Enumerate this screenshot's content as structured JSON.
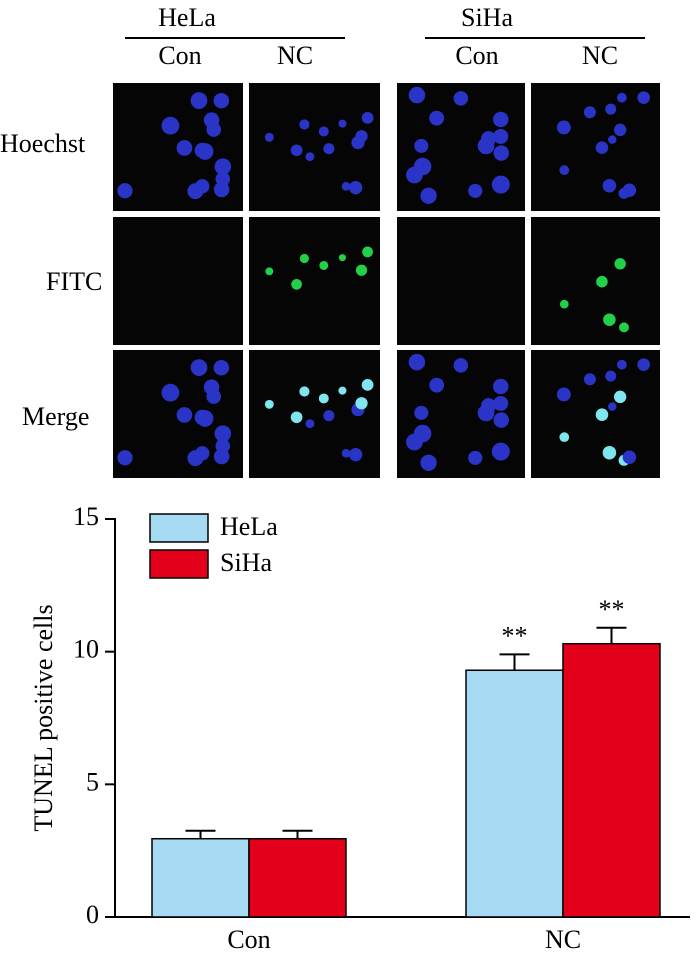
{
  "figure": {
    "groups": [
      "HeLa",
      "SiHa"
    ],
    "conditions": [
      "Con",
      "NC",
      "Con",
      "NC"
    ],
    "rows": [
      "Hoechst",
      "FITC",
      "Merge"
    ]
  },
  "chart_data": {
    "type": "bar",
    "ylabel": "TUNEL positive cells",
    "categories": [
      "Con",
      "NC"
    ],
    "series": [
      {
        "name": "HeLa",
        "color": "#a6d9f2",
        "values": [
          2.95,
          9.3
        ],
        "errors": [
          0.3,
          0.6
        ],
        "significance": [
          null,
          "**"
        ]
      },
      {
        "name": "SiHa",
        "color": "#e2001a",
        "values": [
          2.95,
          10.3
        ],
        "errors": [
          0.3,
          0.6
        ],
        "significance": [
          null,
          "**"
        ]
      }
    ],
    "ylim": [
      0,
      15
    ],
    "yticks": [
      0,
      5,
      10,
      15
    ],
    "legend": "upper left"
  }
}
